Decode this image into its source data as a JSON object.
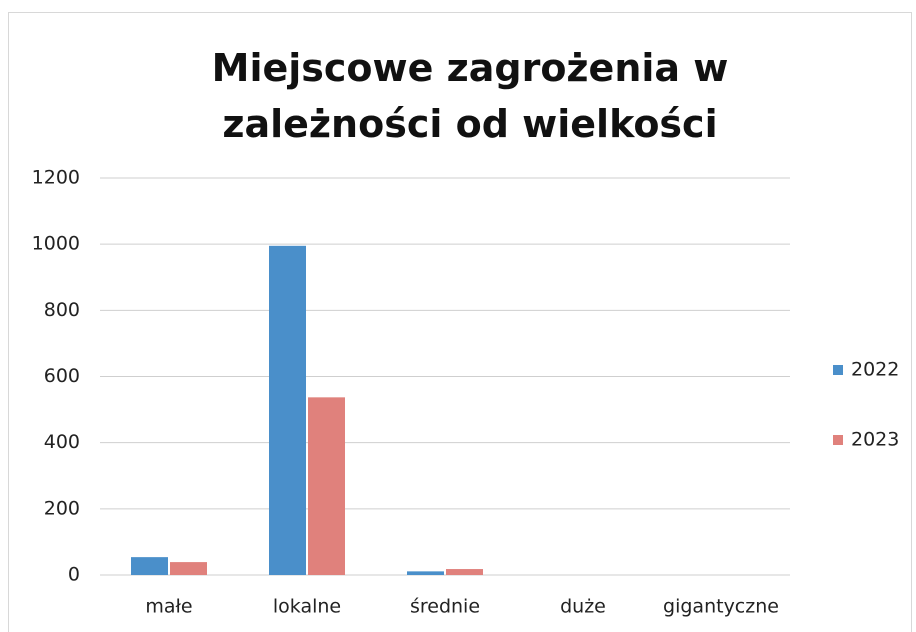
{
  "chart_data": {
    "type": "bar",
    "title": "Miejscowe zagrożenia w zależności od wielkości",
    "categories": [
      "małe",
      "lokalne",
      "średnie",
      "duże",
      "gigantyczne"
    ],
    "series": [
      {
        "name": "2022",
        "color": "#4a8fca",
        "values": [
          54,
          995,
          11,
          0,
          0
        ]
      },
      {
        "name": "2023",
        "color": "#e0817c",
        "values": [
          39,
          537,
          18,
          0,
          0
        ]
      }
    ],
    "ylim": [
      0,
      1200
    ],
    "yticks": [
      0,
      200,
      400,
      600,
      800,
      1000,
      1200
    ],
    "grid": true,
    "legend": "right"
  }
}
